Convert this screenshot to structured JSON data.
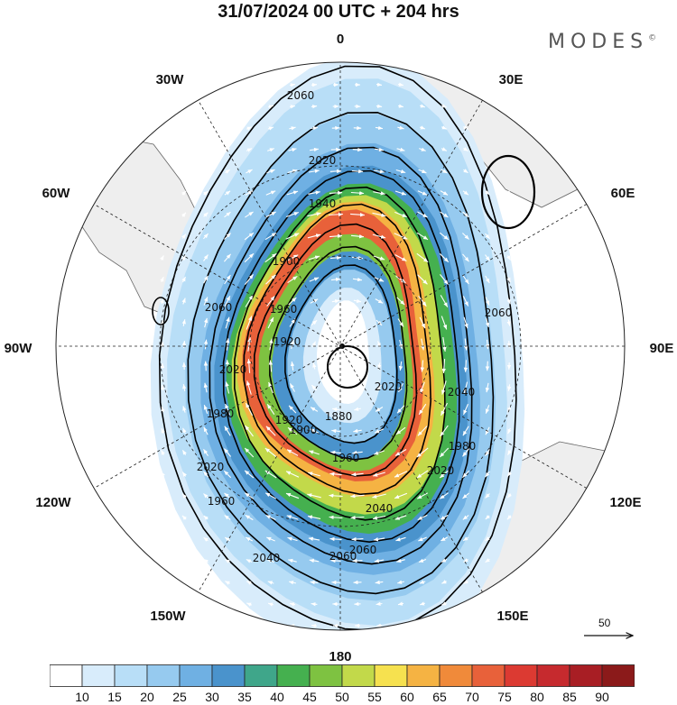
{
  "header": {
    "title": "31/07/2024  00 UTC  + 204 hrs",
    "brand": "MODES",
    "brand_mark": "©"
  },
  "map": {
    "projection": "south-polar-stereographic",
    "longitude_labels": {
      "top": "0",
      "bottom": "180",
      "left": "90W",
      "right": "90E",
      "upper_left_inner": "30W",
      "upper_right_inner": "30E",
      "upper_left_outer": "60W",
      "upper_right_outer": "60E",
      "lower_left_outer": "120W",
      "lower_right_outer": "120E",
      "lower_left_inner": "150W",
      "lower_right_inner": "150E"
    },
    "contour_labels": [
      "2060",
      "2020",
      "1940",
      "1900",
      "1920",
      "1960",
      "2060",
      "2020",
      "1980",
      "2020",
      "1960",
      "2040",
      "1920",
      "1880",
      "1900",
      "2060",
      "2020",
      "2040",
      "1980",
      "2020",
      "2040",
      "1960",
      "2060",
      "2060"
    ],
    "reference_vector_label": "50",
    "colors": {
      "land": "#eeeeee",
      "coast": "#555555",
      "contour": "#000000",
      "vector": "#ffffff"
    }
  },
  "colorbar": {
    "ticks": [
      "10",
      "15",
      "20",
      "25",
      "30",
      "35",
      "40",
      "45",
      "50",
      "55",
      "60",
      "65",
      "70",
      "75",
      "80",
      "85",
      "90"
    ],
    "colors": [
      "#ffffff",
      "#d8ecfb",
      "#b8def7",
      "#96caef",
      "#6fb0e3",
      "#4a93cc",
      "#3fa68a",
      "#45b04f",
      "#7ec241",
      "#c2d94a",
      "#f6e14f",
      "#f5b343",
      "#f08a3a",
      "#e8613a",
      "#dc3a32",
      "#c62a2e",
      "#a81e24",
      "#8b1a1a"
    ]
  }
}
